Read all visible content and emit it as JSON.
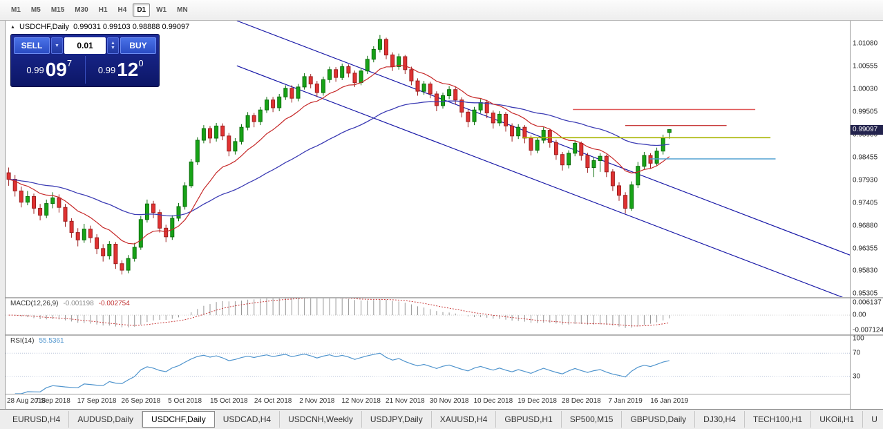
{
  "toolbar": {
    "timeframes": [
      "M1",
      "M5",
      "M15",
      "M30",
      "H1",
      "H4",
      "D1",
      "W1",
      "MN"
    ],
    "active": "D1"
  },
  "icons": {
    "collapse": "▲",
    "dropdown_down": "▼",
    "up": "▲",
    "down": "▼"
  },
  "chart": {
    "symbol_title": "USDCHF,Daily",
    "ohlc_text": "0.99031 0.99103 0.98888 0.99097"
  },
  "trade_panel": {
    "sell_label": "SELL",
    "buy_label": "BUY",
    "volume": "0.01",
    "bid_small": "0.99",
    "bid_big": "09",
    "bid_sup": "7",
    "ask_small": "0.99",
    "ask_big": "12",
    "ask_sup": "0"
  },
  "chart_data": {
    "type": "candlestick",
    "symbol": "USDCHF",
    "timeframe": "Daily",
    "last_ohlc": {
      "open": 0.99031,
      "high": 0.99103,
      "low": 0.98888,
      "close": 0.99097
    },
    "price_axis": {
      "max": 1.0161,
      "min": 0.9523,
      "tick_labels": [
        "1.01080",
        "1.00555",
        "1.00030",
        "0.99505",
        "0.98980",
        "0.98455",
        "0.97930",
        "0.97405",
        "0.96880",
        "0.96355",
        "0.95830",
        "0.95305"
      ],
      "current": "0.99097",
      "current_value": 0.99097
    },
    "colors": {
      "up": {
        "fill": "#17a317",
        "border": "#0b6e0b"
      },
      "down": {
        "fill": "#e03232",
        "border": "#9c1f1f"
      },
      "ma_fast": "#c62828",
      "ma_slow": "#3c3cb4",
      "channel": "#1a1aa8"
    },
    "candles": [
      [
        0.981,
        0.9822,
        0.978,
        0.9795
      ],
      [
        0.9795,
        0.9805,
        0.9755,
        0.9768
      ],
      [
        0.9768,
        0.9778,
        0.973,
        0.9742
      ],
      [
        0.9742,
        0.9768,
        0.9735,
        0.9755
      ],
      [
        0.9755,
        0.9762,
        0.9715,
        0.9728
      ],
      [
        0.9728,
        0.9738,
        0.97,
        0.9712
      ],
      [
        0.9712,
        0.9748,
        0.9705,
        0.9739
      ],
      [
        0.9739,
        0.9765,
        0.9728,
        0.9752
      ],
      [
        0.9752,
        0.976,
        0.9718,
        0.973
      ],
      [
        0.973,
        0.9738,
        0.9685,
        0.9698
      ],
      [
        0.9698,
        0.9705,
        0.966,
        0.9672
      ],
      [
        0.9672,
        0.9682,
        0.964,
        0.9655
      ],
      [
        0.9655,
        0.9692,
        0.9648,
        0.968
      ],
      [
        0.968,
        0.9688,
        0.9648,
        0.966
      ],
      [
        0.966,
        0.9668,
        0.9622,
        0.9635
      ],
      [
        0.9635,
        0.9645,
        0.9605,
        0.9618
      ],
      [
        0.9618,
        0.9652,
        0.961,
        0.9645
      ],
      [
        0.9645,
        0.965,
        0.9588,
        0.96
      ],
      [
        0.96,
        0.9608,
        0.9575,
        0.9585
      ],
      [
        0.9585,
        0.962,
        0.9578,
        0.9612
      ],
      [
        0.9612,
        0.9648,
        0.9605,
        0.9638
      ],
      [
        0.9638,
        0.971,
        0.9632,
        0.9702
      ],
      [
        0.9702,
        0.9748,
        0.9695,
        0.9738
      ],
      [
        0.9738,
        0.9745,
        0.9705,
        0.9718
      ],
      [
        0.9718,
        0.9725,
        0.9672,
        0.9682
      ],
      [
        0.9682,
        0.969,
        0.965,
        0.9662
      ],
      [
        0.9662,
        0.9712,
        0.9655,
        0.9705
      ],
      [
        0.9705,
        0.974,
        0.9698,
        0.9732
      ],
      [
        0.9732,
        0.9788,
        0.9725,
        0.978
      ],
      [
        0.978,
        0.9842,
        0.9775,
        0.9835
      ],
      [
        0.9835,
        0.9892,
        0.9828,
        0.9885
      ],
      [
        0.9885,
        0.992,
        0.9878,
        0.9912
      ],
      [
        0.9912,
        0.9918,
        0.9878,
        0.989
      ],
      [
        0.989,
        0.9925,
        0.9882,
        0.9918
      ],
      [
        0.9918,
        0.9924,
        0.9885,
        0.9895
      ],
      [
        0.9895,
        0.9902,
        0.9848,
        0.986
      ],
      [
        0.986,
        0.989,
        0.9852,
        0.9882
      ],
      [
        0.9882,
        0.9922,
        0.9875,
        0.9915
      ],
      [
        0.9915,
        0.995,
        0.9908,
        0.9942
      ],
      [
        0.9942,
        0.9948,
        0.9915,
        0.9928
      ],
      [
        0.9928,
        0.9962,
        0.992,
        0.9955
      ],
      [
        0.9955,
        0.9985,
        0.9948,
        0.9978
      ],
      [
        0.9978,
        0.9985,
        0.995,
        0.996
      ],
      [
        0.996,
        0.9992,
        0.9952,
        0.9985
      ],
      [
        0.9985,
        1.0012,
        0.9978,
        1.0005
      ],
      [
        1.0005,
        1.0012,
        0.9972,
        0.9982
      ],
      [
        0.9982,
        1.0015,
        0.9975,
        1.0008
      ],
      [
        1.0008,
        1.004,
        1.0002,
        1.0032
      ],
      [
        1.0032,
        1.0038,
        1.0005,
        1.0015
      ],
      [
        1.0015,
        1.0022,
        0.9985,
        0.9995
      ],
      [
        0.9995,
        1.0032,
        0.9988,
        1.0025
      ],
      [
        1.0025,
        1.0055,
        1.0018,
        1.0048
      ],
      [
        1.0048,
        1.0054,
        1.002,
        1.003
      ],
      [
        1.003,
        1.0062,
        1.0024,
        1.0055
      ],
      [
        1.0055,
        1.006,
        1.003,
        1.004
      ],
      [
        1.004,
        1.0046,
        1.0008,
        1.0018
      ],
      [
        1.0018,
        1.0052,
        1.0012,
        1.0045
      ],
      [
        1.0045,
        1.008,
        1.0038,
        1.0072
      ],
      [
        1.0072,
        1.0102,
        1.0065,
        1.0095
      ],
      [
        1.0095,
        1.0128,
        1.0088,
        1.0118
      ],
      [
        1.0118,
        1.0122,
        1.0072,
        1.0082
      ],
      [
        1.0082,
        1.0088,
        1.0045,
        1.0055
      ],
      [
        1.0055,
        1.0085,
        1.0048,
        1.0078
      ],
      [
        1.0078,
        1.0082,
        1.0038,
        1.0048
      ],
      [
        1.0048,
        1.0055,
        1.0012,
        1.0022
      ],
      [
        1.0022,
        1.0028,
        0.9988,
        0.9998
      ],
      [
        0.9998,
        1.0022,
        0.999,
        1.0015
      ],
      [
        1.0015,
        1.002,
        0.9982,
        0.9992
      ],
      [
        0.9992,
        0.9998,
        0.9952,
        0.9965
      ],
      [
        0.9965,
        0.9995,
        0.9958,
        0.9988
      ],
      [
        0.9988,
        1.001,
        0.998,
        1.0002
      ],
      [
        1.0002,
        1.0008,
        0.9968,
        0.9978
      ],
      [
        0.9978,
        0.9984,
        0.9938,
        0.995
      ],
      [
        0.995,
        0.9956,
        0.9915,
        0.9928
      ],
      [
        0.9928,
        0.9962,
        0.992,
        0.9955
      ],
      [
        0.9955,
        0.998,
        0.9948,
        0.9972
      ],
      [
        0.9972,
        0.9978,
        0.9936,
        0.9948
      ],
      [
        0.9948,
        0.9954,
        0.9912,
        0.9925
      ],
      [
        0.9925,
        0.9952,
        0.9918,
        0.9945
      ],
      [
        0.9945,
        0.995,
        0.9905,
        0.9918
      ],
      [
        0.9918,
        0.9924,
        0.9882,
        0.9895
      ],
      [
        0.9895,
        0.9922,
        0.9888,
        0.9915
      ],
      [
        0.9915,
        0.992,
        0.9878,
        0.989
      ],
      [
        0.989,
        0.9896,
        0.985,
        0.9862
      ],
      [
        0.9862,
        0.9892,
        0.9855,
        0.9885
      ],
      [
        0.9885,
        0.9915,
        0.9878,
        0.9908
      ],
      [
        0.9908,
        0.9912,
        0.9868,
        0.988
      ],
      [
        0.988,
        0.9886,
        0.984,
        0.9852
      ],
      [
        0.9852,
        0.9858,
        0.9815,
        0.9828
      ],
      [
        0.9828,
        0.9862,
        0.982,
        0.9855
      ],
      [
        0.9855,
        0.9885,
        0.9848,
        0.9878
      ],
      [
        0.9878,
        0.9882,
        0.9838,
        0.985
      ],
      [
        0.985,
        0.9856,
        0.981,
        0.9822
      ],
      [
        0.9822,
        0.9845,
        0.98,
        0.9838
      ],
      [
        0.9838,
        0.9855,
        0.9812,
        0.9848
      ],
      [
        0.9848,
        0.9852,
        0.98,
        0.9812
      ],
      [
        0.9812,
        0.9818,
        0.9768,
        0.978
      ],
      [
        0.978,
        0.9788,
        0.9745,
        0.9758
      ],
      [
        0.9758,
        0.9765,
        0.9716,
        0.9728
      ],
      [
        0.9728,
        0.979,
        0.9722,
        0.9782
      ],
      [
        0.9782,
        0.9835,
        0.9775,
        0.9825
      ],
      [
        0.9825,
        0.9858,
        0.9818,
        0.985
      ],
      [
        0.985,
        0.9855,
        0.982,
        0.9832
      ],
      [
        0.9832,
        0.9868,
        0.9825,
        0.986
      ],
      [
        0.986,
        0.9898,
        0.9852,
        0.989
      ],
      [
        0.99031,
        0.99103,
        0.98888,
        0.99097
      ]
    ],
    "overlays": {
      "ma_fast": {
        "type": "ema",
        "period": 12
      },
      "ma_slow": {
        "type": "ema",
        "period": 40
      },
      "channel_lines": [
        {
          "x1_frac": 0.274,
          "price1": 1.0161,
          "x2_frac": 1.0,
          "price2": 0.962
        },
        {
          "x1_frac": 0.274,
          "price1": 1.0057,
          "x2_frac": 1.0,
          "price2": 0.9516
        }
      ],
      "horizontal_segments": [
        {
          "price": 0.9956,
          "x1_frac": 0.672,
          "x2_frac": 0.888,
          "color": "#e05a5a",
          "width": 1.4
        },
        {
          "price": 0.9919,
          "x1_frac": 0.734,
          "x2_frac": 0.854,
          "color": "#c83c3c",
          "width": 1.4
        },
        {
          "price": 0.9891,
          "x1_frac": 0.612,
          "x2_frac": 0.906,
          "color": "#a8b400",
          "width": 1.6
        },
        {
          "price": 0.9842,
          "x1_frac": 0.763,
          "x2_frac": 0.912,
          "color": "#50a0d2",
          "width": 1.6
        }
      ]
    },
    "indicators": {
      "macd": {
        "name": "MACD(12,26,9)",
        "value_main": "-0.001198",
        "value_signal": "-0.002754",
        "axis_top": "0.006137",
        "axis_zero": "0.00",
        "axis_bottom": "-0.007124",
        "axis_max": 0.006137,
        "axis_min": -0.007124,
        "histogram_color": "#969696",
        "signal_color": "#c83c3c"
      },
      "rsi": {
        "name": "RSI(14)",
        "value": "55.5361",
        "axis_labels": [
          "100",
          "70",
          "30"
        ],
        "levels": [
          70,
          30
        ],
        "line_color": "#4f94cd"
      }
    },
    "x_axis_dates": [
      "28 Aug 2018",
      "7 Sep 2018",
      "17 Sep 2018",
      "26 Sep 2018",
      "5 Oct 2018",
      "15 Oct 2018",
      "24 Oct 2018",
      "2 Nov 2018",
      "12 Nov 2018",
      "21 Nov 2018",
      "30 Nov 2018",
      "10 Dec 2018",
      "19 Dec 2018",
      "28 Dec 2018",
      "7 Jan 2019",
      "16 Jan 2019"
    ]
  },
  "tabs": {
    "items": [
      "EURUSD,H4",
      "AUDUSD,Daily",
      "USDCHF,Daily",
      "USDCAD,H4",
      "USDCNH,Weekly",
      "USDJPY,Daily",
      "XAUUSD,H4",
      "GBPUSD,H1",
      "SP500,M15",
      "GBPUSD,Daily",
      "DJ30,H4",
      "TECH100,H1",
      "UKOil,H1",
      "U"
    ],
    "active_index": 2
  }
}
